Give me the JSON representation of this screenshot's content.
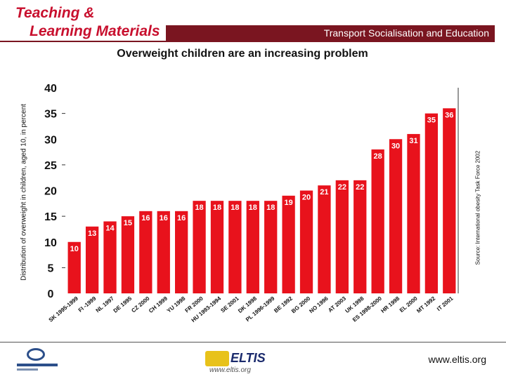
{
  "header": {
    "brand_line1": "Teaching &",
    "brand_line2": "Learning Materials",
    "banner": "Transport Socialisation and Education",
    "accent_color": "#c8102e",
    "banner_color": "#7a1520"
  },
  "chart_data": {
    "type": "bar",
    "title": "Overweight children are an increasing problem",
    "ylabel": "Distribution of overweight in children, aged 10, in percent",
    "xlabel": "",
    "ylim": [
      0,
      40
    ],
    "yticks": [
      "0",
      "5",
      "10",
      "15",
      "20",
      "25",
      "30",
      "35",
      "40"
    ],
    "grid": false,
    "bar_color": "#e8121c",
    "categories": [
      "SK 1995-1999",
      "FI -1999",
      "NL 1997",
      "DE 1995",
      "CZ 2000",
      "CH 1999",
      "YU 1998",
      "FR 2000",
      "HU 1993-1994",
      "SE 2001",
      "DK 1998",
      "PL 1996-1999",
      "BE 1992",
      "BG 2000",
      "NO 1996",
      "AT 2003",
      "UK 1998",
      "ES 1998-2000",
      "HR 1998",
      "EL 2000",
      "MT 1992",
      "IT 2001"
    ],
    "values": [
      10,
      13,
      14,
      15,
      16,
      16,
      16,
      18,
      18,
      18,
      18,
      18,
      19,
      20,
      21,
      22,
      22,
      28,
      30,
      31,
      35,
      36
    ],
    "source_note": "Source: International obesity Task Force 2002"
  },
  "footer": {
    "url": "www.eltis.org",
    "logo_word": "ELTIS",
    "logo_sub": "www.eltis.org"
  }
}
